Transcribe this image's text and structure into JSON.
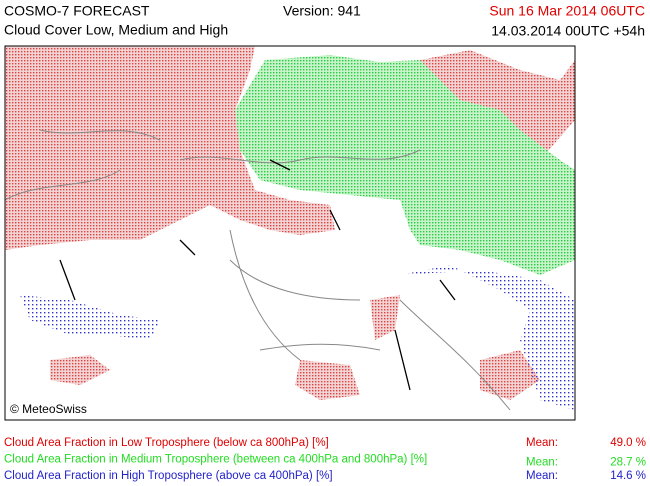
{
  "header": {
    "title": "COSMO-7 FORECAST",
    "subtitle": "Cloud Cover Low, Medium and High",
    "version": "Version: 941",
    "valid_time": "Sun 16 Mar 2014 06UTC",
    "run": "14.03.2014 00UTC +54h"
  },
  "map": {
    "copyright": "© MeteoSwiss"
  },
  "legend": [
    {
      "label": "Cloud Area Fraction in Low Troposphere (below ca 800hPa) [%]",
      "mean_label": "Mean:",
      "mean": "49.0 %"
    },
    {
      "label": "Cloud Area Fraction in Medium Troposphere (between ca 400hPa and 800hPa) [%]",
      "mean_label": "Mean:",
      "mean": "28.7 %"
    },
    {
      "label": "Cloud Area Fraction in High Troposphere (above ca 400hPa) [%]",
      "mean_label": "Mean:",
      "mean": "14.6 %"
    }
  ]
}
